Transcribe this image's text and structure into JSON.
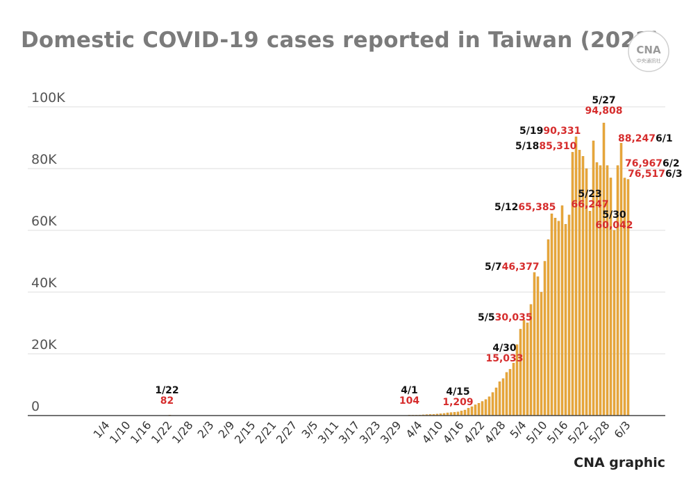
{
  "title": "Domestic COVID-19 cases reported in Taiwan (2022)",
  "credit": "CNA graphic",
  "logo": {
    "text": "CNA",
    "subtext": "中央通訊社"
  },
  "colors": {
    "bar": "#e8a73c",
    "bar_edge": "#c98412",
    "grid": "#dddddd",
    "axis": "#444444",
    "annotation_value": "#d62d2d",
    "annotation_date": "#111111",
    "title": "#7b7b7b"
  },
  "chart_data": {
    "type": "bar",
    "xlabel": "",
    "ylabel": "",
    "ylim": [
      0,
      100000
    ],
    "yticks": [
      0,
      20000,
      40000,
      60000,
      80000,
      100000
    ],
    "ytick_labels": [
      "0",
      "20K",
      "40K",
      "60K",
      "80K",
      "100K"
    ],
    "grid": true,
    "legend": "none",
    "x_start": "1/1",
    "x_end": "6/3",
    "xtick_labels": [
      "1/4",
      "1/10",
      "1/16",
      "1/22",
      "1/28",
      "2/3",
      "2/9",
      "2/15",
      "2/21",
      "2/27",
      "3/5",
      "3/11",
      "3/17",
      "3/23",
      "3/29",
      "4/4",
      "4/10",
      "4/16",
      "4/22",
      "4/28",
      "5/4",
      "5/10",
      "5/16",
      "5/22",
      "5/28",
      "6/3"
    ],
    "series": [
      {
        "name": "",
        "x": [
          "4/1",
          "4/2",
          "4/3",
          "4/4",
          "4/5",
          "4/6",
          "4/7",
          "4/8",
          "4/9",
          "4/10",
          "4/11",
          "4/12",
          "4/13",
          "4/14",
          "4/15",
          "4/16",
          "4/17",
          "4/18",
          "4/19",
          "4/20",
          "4/21",
          "4/22",
          "4/23",
          "4/24",
          "4/25",
          "4/26",
          "4/27",
          "4/28",
          "4/29",
          "4/30",
          "5/1",
          "5/2",
          "5/3",
          "5/4",
          "5/5",
          "5/6",
          "5/7",
          "5/8",
          "5/9",
          "5/10",
          "5/11",
          "5/12",
          "5/13",
          "5/14",
          "5/15",
          "5/16",
          "5/17",
          "5/18",
          "5/19",
          "5/20",
          "5/21",
          "5/22",
          "5/23",
          "5/24",
          "5/25",
          "5/26",
          "5/27",
          "5/28",
          "5/29",
          "5/30",
          "5/31",
          "6/1",
          "6/2",
          "6/3"
        ],
        "values": [
          104,
          150,
          170,
          200,
          250,
          330,
          380,
          420,
          500,
          600,
          700,
          900,
          1000,
          1100,
          1209,
          1500,
          1800,
          2400,
          2900,
          3500,
          4000,
          4600,
          5200,
          6100,
          7500,
          9000,
          11000,
          12000,
          14000,
          15033,
          17000,
          23000,
          28000,
          31000,
          30035,
          36000,
          46377,
          45000,
          40000,
          50000,
          57000,
          65385,
          64000,
          63000,
          68000,
          62000,
          65000,
          85310,
          90331,
          86000,
          84000,
          80000,
          66247,
          89000,
          82000,
          81000,
          94808,
          81000,
          77000,
          60042,
          81000,
          88247,
          76967,
          76517
        ]
      }
    ],
    "early_values": [
      {
        "x": "1/22",
        "value": 82
      }
    ],
    "annotations": [
      {
        "date": "1/22",
        "value": "82"
      },
      {
        "date": "4/1",
        "value": "104"
      },
      {
        "date": "4/15",
        "value": "1,209"
      },
      {
        "date": "4/30",
        "value": "15,033"
      },
      {
        "date": "5/5",
        "value": "30,035"
      },
      {
        "date": "5/7",
        "value": "46,377"
      },
      {
        "date": "5/12",
        "value": "65,385"
      },
      {
        "date": "5/18",
        "value": "85,310"
      },
      {
        "date": "5/19",
        "value": "90,331"
      },
      {
        "date": "5/23",
        "value": "66,247"
      },
      {
        "date": "5/27",
        "value": "94,808"
      },
      {
        "date": "5/30",
        "value": "60,042"
      },
      {
        "date": "6/1",
        "value": "88,247"
      },
      {
        "date": "6/2",
        "value": "76,967"
      },
      {
        "date": "6/3",
        "value": "76,517"
      }
    ]
  }
}
